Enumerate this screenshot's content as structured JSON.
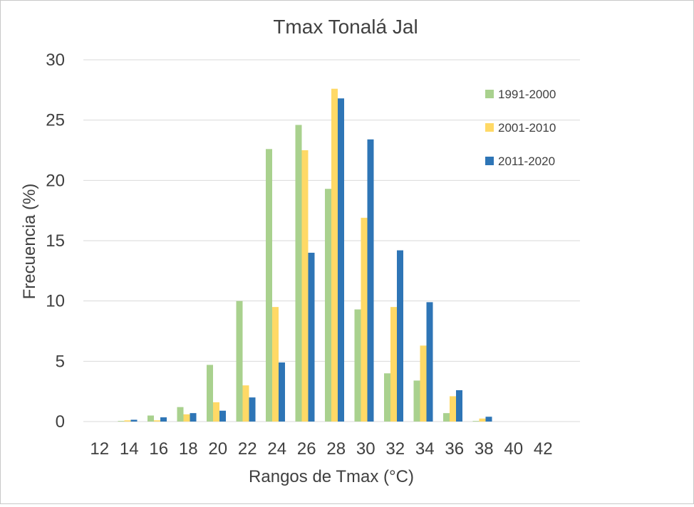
{
  "chart_data": {
    "type": "bar",
    "title": "Tmax Tonalá Jal",
    "xlabel": "Rangos de Tmax (°C)",
    "ylabel": "Frecuencia (%)",
    "ylim": [
      0,
      30
    ],
    "yticks": [
      "0",
      "5",
      "10",
      "15",
      "20",
      "25",
      "30"
    ],
    "grid": true,
    "legend_position": "right",
    "categories": [
      "12",
      "14",
      "16",
      "18",
      "20",
      "22",
      "24",
      "26",
      "28",
      "30",
      "32",
      "34",
      "36",
      "38",
      "40",
      "42"
    ],
    "series": [
      {
        "name": "1991-2000",
        "color": "#a9d18e",
        "values": [
          0,
          0.05,
          0.5,
          1.2,
          4.7,
          10.0,
          22.6,
          24.6,
          19.3,
          9.3,
          4.0,
          3.4,
          0.7,
          0.05,
          0,
          0
        ]
      },
      {
        "name": "2001-2010",
        "color": "#ffd966",
        "values": [
          0,
          0.1,
          0.1,
          0.6,
          1.6,
          3.0,
          9.5,
          22.5,
          27.6,
          16.9,
          9.5,
          6.3,
          2.1,
          0.25,
          0,
          0
        ]
      },
      {
        "name": "2011-2020",
        "color": "#2e75b6",
        "values": [
          0,
          0.15,
          0.35,
          0.7,
          0.9,
          2.0,
          4.9,
          14.0,
          26.8,
          23.4,
          14.2,
          9.9,
          2.6,
          0.4,
          0,
          0
        ]
      }
    ]
  }
}
